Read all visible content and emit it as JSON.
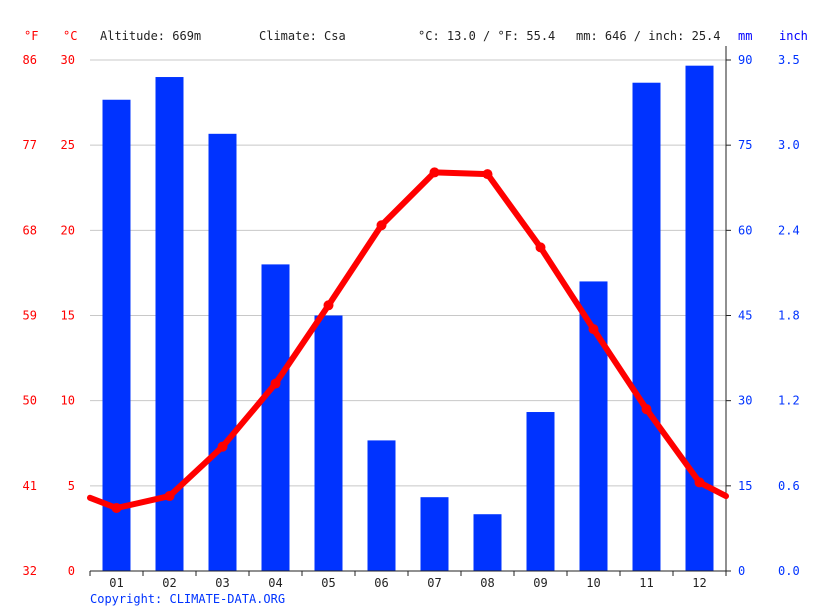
{
  "header": {
    "f_unit": "°F",
    "c_unit": "°C",
    "altitude": "Altitude: 669m",
    "climate": "Climate: Csa",
    "temp_avg": "°C: 13.0 / °F: 55.4",
    "precip_total": "mm: 646 / inch: 25.4",
    "mm_unit": "mm",
    "inch_unit": "inch"
  },
  "footer": {
    "copyright": "Copyright: CLIMATE-DATA.ORG"
  },
  "colors": {
    "temperature": "#ff0000",
    "precipitation": "#0033ff",
    "axis_text_left": "#ff0000",
    "axis_text_right": "#0033ff"
  },
  "chart_data": {
    "type": "bar",
    "categories": [
      "01",
      "02",
      "03",
      "04",
      "05",
      "06",
      "07",
      "08",
      "09",
      "10",
      "11",
      "12"
    ],
    "series": [
      {
        "kind": "bar",
        "axis": "mm",
        "values": [
          83,
          87,
          77,
          54,
          45,
          23,
          13,
          10,
          28,
          51,
          86,
          89
        ]
      },
      {
        "kind": "line",
        "axis": "celsius",
        "values": [
          3.7,
          4.4,
          7.3,
          11.0,
          15.6,
          20.3,
          23.4,
          23.3,
          19.0,
          14.2,
          9.5,
          5.2
        ]
      }
    ],
    "line_extension": {
      "start": 4.3,
      "end": 4.4
    },
    "axes": {
      "fahrenheit_ticks": [
        "86",
        "77",
        "68",
        "59",
        "50",
        "41",
        "32"
      ],
      "celsius_ticks": [
        "30",
        "25",
        "20",
        "15",
        "10",
        "5",
        "0"
      ],
      "mm_ticks": [
        "90",
        "75",
        "60",
        "45",
        "30",
        "15",
        "0"
      ],
      "inch_ticks": [
        "3.5",
        "3.0",
        "2.4",
        "1.8",
        "1.2",
        "0.6",
        "0.0"
      ],
      "celsius_range": [
        0,
        30
      ],
      "mm_range": [
        0,
        90
      ]
    },
    "grid": true
  }
}
